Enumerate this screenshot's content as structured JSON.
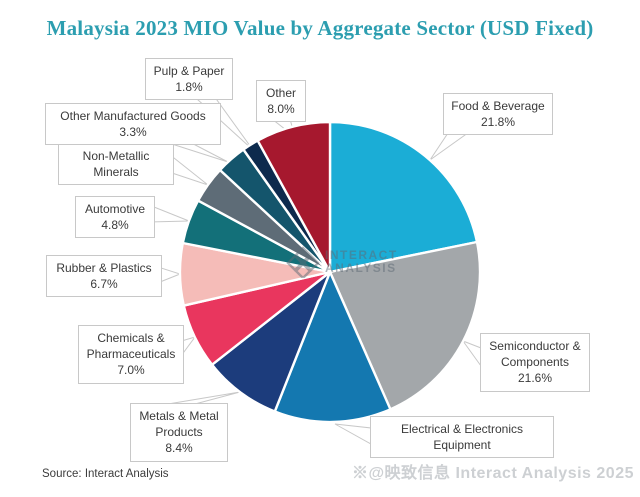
{
  "title": "Malaysia 2023 MIO Value by Aggregate Sector (USD Fixed)",
  "source": "Source: Interact Analysis",
  "watermark_center": {
    "logo": "interact-analysis-diamond-logo",
    "line1": "INTERACT",
    "line2": "ANALYSIS"
  },
  "watermark_bottom": "※@映致信息 Interact Analysis 2025",
  "colors": {
    "title": "#2C9EB0",
    "label_text": "#3A3A3A",
    "label_border": "#C8C8C8",
    "leader_line": "#C8C8C8",
    "source_text": "#3C3C3C",
    "watermark": "#CDD0D3"
  },
  "chart_data": {
    "type": "pie",
    "title": "Malaysia 2023 MIO Value by Aggregate Sector (USD Fixed)",
    "unit": "%",
    "start_angle_deg": 0,
    "direction": "clockwise",
    "legend_position": "callout-labels",
    "slices": [
      {
        "label": "Food & Beverage",
        "value": 21.8,
        "value_label": "21.8%",
        "color": "#1BADD6"
      },
      {
        "label": "Semiconductor & Components",
        "value": 21.6,
        "value_label": "21.6%",
        "color": "#A3A7AA"
      },
      {
        "label": "Electrical & Electronics Equipment",
        "value": 12.6,
        "value_label": "",
        "color": "#1478B0"
      },
      {
        "label": "Metals & Metal Products",
        "value": 8.4,
        "value_label": "8.4%",
        "color": "#1C3C7C"
      },
      {
        "label": "Chemicals & Pharmaceuticals",
        "value": 7.0,
        "value_label": "7.0%",
        "color": "#E9365E"
      },
      {
        "label": "Rubber & Plastics",
        "value": 6.7,
        "value_label": "6.7%",
        "color": "#F5BCB8"
      },
      {
        "label": "Automotive",
        "value": 4.8,
        "value_label": "4.8%",
        "color": "#137079"
      },
      {
        "label": "Non-Metallic Minerals",
        "value": 4.0,
        "value_label": "",
        "color": "#5E6C77"
      },
      {
        "label": "Other Manufactured Goods",
        "value": 3.3,
        "value_label": "3.3%",
        "color": "#14556C"
      },
      {
        "label": "Pulp & Paper",
        "value": 1.8,
        "value_label": "1.8%",
        "color": "#0D2A4D"
      },
      {
        "label": "Other",
        "value": 8.0,
        "value_label": "8.0%",
        "color": "#A6182E"
      }
    ]
  }
}
